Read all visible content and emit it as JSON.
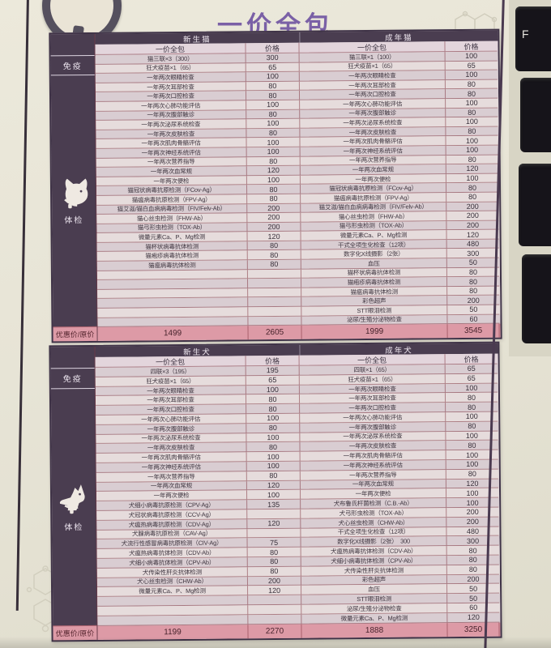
{
  "title": "一价全包",
  "accent_color": "#7a60a6",
  "grid_color": "#803440",
  "header_bg": "#4a3d50",
  "footer_bg": "#dd9aa6",
  "keyboard": {
    "visible_key_label": "F"
  },
  "tables": [
    {
      "name": "cat-price-table",
      "group_left": "新生猫",
      "group_right": "成年猫",
      "package_label_left": "一价全包",
      "price_label_left": "价格",
      "package_label_right": "一价全包",
      "price_label_right": "价格",
      "sidebar": {
        "section1": "免疫",
        "section2": "体检",
        "icon": "cat-head-icon",
        "footer_label": "优惠价/原价"
      },
      "rows": [
        {
          "l": "猫三联×3（300）",
          "lp": "300",
          "r": "猫三联×1（100）",
          "rp": "100"
        },
        {
          "l": "狂犬疫苗×1（65）",
          "lp": "65",
          "r": "狂犬疫苗×1（65）",
          "rp": "65"
        },
        {
          "l": "一年两次眼睛检查",
          "lp": "100",
          "r": "一年两次眼睛检查",
          "rp": "100"
        },
        {
          "l": "一年两次耳部检查",
          "lp": "80",
          "r": "一年两次耳部检查",
          "rp": "80"
        },
        {
          "l": "一年两次口腔检查",
          "lp": "80",
          "r": "一年两次口腔检查",
          "rp": "80"
        },
        {
          "l": "一年两次心肺功能评估",
          "lp": "100",
          "r": "一年两次心肺功能评估",
          "rp": "100"
        },
        {
          "l": "一年两次腹部触诊",
          "lp": "80",
          "r": "一年两次腹部触诊",
          "rp": "80"
        },
        {
          "l": "一年两次泌尿系统检查",
          "lp": "100",
          "r": "一年两次泌尿系统检查",
          "rp": "100"
        },
        {
          "l": "一年两次皮肤检查",
          "lp": "80",
          "r": "一年两次皮肤检查",
          "rp": "80"
        },
        {
          "l": "一年两次肌肉骨骼评估",
          "lp": "100",
          "r": "一年两次肌肉骨骼评估",
          "rp": "100"
        },
        {
          "l": "一年两次神经系统评估",
          "lp": "100",
          "r": "一年两次神经系统评估",
          "rp": "100"
        },
        {
          "l": "一年两次营养指导",
          "lp": "80",
          "r": "一年两次营养指导",
          "rp": "80"
        },
        {
          "l": "一年两次血常规",
          "lp": "120",
          "r": "一年两次血常规",
          "rp": "120"
        },
        {
          "l": "一年两次便检",
          "lp": "100",
          "r": "一年两次便检",
          "rp": "100"
        },
        {
          "l": "猫冠状病毒抗原检测（FCov-Ag）",
          "lp": "80",
          "r": "猫冠状病毒抗原检测（FCov-Ag）",
          "rp": "80"
        },
        {
          "l": "猫瘟病毒抗原检测（FPV-Ag）",
          "lp": "80",
          "r": "猫瘟病毒抗原检测（FPV-Ag）",
          "rp": "80"
        },
        {
          "l": "猫艾滋/猫白血病病毒检测（FIV/Felv-Ab）",
          "lp": "200",
          "r": "猫艾滋/猫白血病病毒检测（FIV/Felv-Ab）",
          "rp": "200"
        },
        {
          "l": "猫心丝虫检测（FHW-Ab）",
          "lp": "200",
          "r": "猫心丝虫检测（FHW-Ab）",
          "rp": "200"
        },
        {
          "l": "猫弓形虫检测（TOX-Ab）",
          "lp": "200",
          "r": "猫弓形虫检测（TOX-Ab）",
          "rp": "200"
        },
        {
          "l": "微量元素Ca、P、Mg检测",
          "lp": "120",
          "r": "微量元素Ca、P、Mg检测",
          "rp": "120"
        },
        {
          "l": "猫杯状病毒抗体检测",
          "lp": "80",
          "r": "干式全项生化检查（12项）",
          "rp": "480"
        },
        {
          "l": "猫疱疹病毒抗体检测",
          "lp": "80",
          "r": "数字化X线摄影（2张）",
          "rp": "300"
        },
        {
          "l": "猫瘟病毒抗体检测",
          "lp": "80",
          "r": "血压",
          "rp": "50"
        },
        {
          "l": "",
          "lp": "",
          "r": "猫杯状病毒抗体检测",
          "rp": "80"
        },
        {
          "l": "",
          "lp": "",
          "r": "猫疱疹病毒抗体检测",
          "rp": "80"
        },
        {
          "l": "",
          "lp": "",
          "r": "猫瘟病毒抗体检测",
          "rp": "80"
        },
        {
          "l": "",
          "lp": "",
          "r": "彩色超声",
          "rp": "200"
        },
        {
          "l": "",
          "lp": "",
          "r": "STT眼泪检测",
          "rp": "50"
        },
        {
          "l": "",
          "lp": "",
          "r": "泌尿/生殖分泌物检查",
          "rp": "60"
        }
      ],
      "footer": [
        "1499",
        "2605",
        "1999",
        "3545"
      ]
    },
    {
      "name": "dog-price-table",
      "group_left": "新生犬",
      "group_right": "成年犬",
      "package_label_left": "一价全包",
      "price_label_left": "价格",
      "package_label_right": "一价全包",
      "price_label_right": "价格",
      "sidebar": {
        "section1": "免疫",
        "section2": "体检",
        "icon": "dog-head-icon",
        "footer_label": "优惠价/原价"
      },
      "rows": [
        {
          "l": "四联×3（195）",
          "lp": "195",
          "r": "四联×1（65）",
          "rp": "65"
        },
        {
          "l": "狂犬疫苗×1（65）",
          "lp": "65",
          "r": "狂犬疫苗×1（65）",
          "rp": "65"
        },
        {
          "l": "一年两次眼睛检查",
          "lp": "100",
          "r": "一年两次眼睛检查",
          "rp": "100"
        },
        {
          "l": "一年两次耳部检查",
          "lp": "80",
          "r": "一年两次耳部检查",
          "rp": "80"
        },
        {
          "l": "一年两次口腔检查",
          "lp": "80",
          "r": "一年两次口腔检查",
          "rp": "80"
        },
        {
          "l": "一年两次心肺功能评估",
          "lp": "100",
          "r": "一年两次心肺功能评估",
          "rp": "100"
        },
        {
          "l": "一年两次腹部触诊",
          "lp": "80",
          "r": "一年两次腹部触诊",
          "rp": "80"
        },
        {
          "l": "一年两次泌尿系统检查",
          "lp": "100",
          "r": "一年两次泌尿系统检查",
          "rp": "100"
        },
        {
          "l": "一年两次皮肤检查",
          "lp": "80",
          "r": "一年两次皮肤检查",
          "rp": "80"
        },
        {
          "l": "一年两次肌肉骨骼评估",
          "lp": "100",
          "r": "一年两次肌肉骨骼评估",
          "rp": "100"
        },
        {
          "l": "一年两次神经系统评估",
          "lp": "100",
          "r": "一年两次神经系统评估",
          "rp": "100"
        },
        {
          "l": "一年两次营养指导",
          "lp": "80",
          "r": "一年两次营养指导",
          "rp": "80"
        },
        {
          "l": "一年两次血常规",
          "lp": "120",
          "r": "一年两次血常规",
          "rp": "120"
        },
        {
          "l": "一年两次便检",
          "lp": "100",
          "r": "一年两次便检",
          "rp": "100"
        },
        {
          "l": "犬细小病毒抗原检测（CPV-Ag）",
          "lp": "135",
          "r": "犬布鲁氏杆菌检测（C.B.-Ab）",
          "rp": "100"
        },
        {
          "l": "犬冠状病毒抗原检测（CCV-Ag）",
          "lp": "",
          "r": "犬弓形虫检测（TOX-Ab）",
          "rp": "200"
        },
        {
          "l": "犬瘟热病毒抗原检测（CDV-Ag）",
          "lp": "120",
          "r": "犬心丝虫检测（CHW-Ab）",
          "rp": "200"
        },
        {
          "l": "犬腺病毒抗原检测（CAV-Ag）",
          "lp": "",
          "r": "干式全项生化检查（12项）",
          "rp": "480"
        },
        {
          "l": "犬流行性感冒病毒抗原检测（CIV-Ag）",
          "lp": "75",
          "r": "数字化X线摄影（2张）　300",
          "rp": "300"
        },
        {
          "l": "犬瘟热病毒抗体检测（CDV-Ab）",
          "lp": "80",
          "r": "犬瘟热病毒抗体检测（CDV-Ab）",
          "rp": "80"
        },
        {
          "l": "犬细小病毒抗体检测（CPV-Ab）",
          "lp": "80",
          "r": "犬细小病毒抗体检测（CPV-Ab）",
          "rp": "80"
        },
        {
          "l": "犬传染性肝炎抗体检测",
          "lp": "80",
          "r": "犬传染性肝炎抗体检测",
          "rp": "80"
        },
        {
          "l": "犬心丝虫检测（CHW-Ab）",
          "lp": "200",
          "r": "彩色超声",
          "rp": "200"
        },
        {
          "l": "微量元素Ca、P、Mg检测",
          "lp": "120",
          "r": "血压",
          "rp": "50"
        },
        {
          "l": "",
          "lp": "",
          "r": "STT眼泪检测",
          "rp": "50"
        },
        {
          "l": "",
          "lp": "",
          "r": "泌尿/生殖分泌物检查",
          "rp": "60"
        },
        {
          "l": "",
          "lp": "",
          "r": "微量元素Ca、P、Mg检测",
          "rp": "120"
        }
      ],
      "footer": [
        "1199",
        "2270",
        "1888",
        "3250"
      ]
    }
  ]
}
